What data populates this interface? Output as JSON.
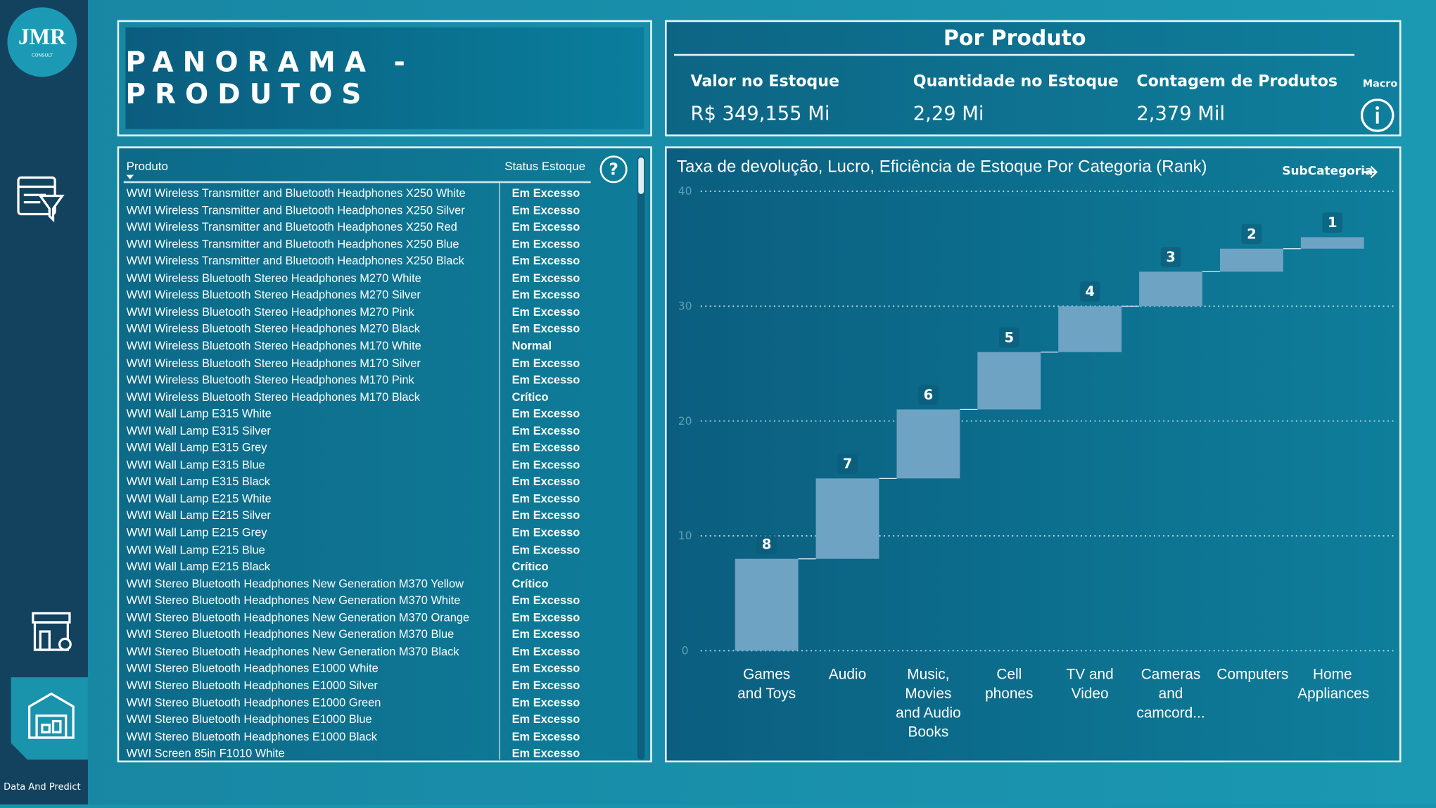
{
  "sidebar": {
    "logo": "JMR",
    "logo_sub": "CONSULT",
    "footer": "Data And Predict"
  },
  "header": {
    "title": "PANORAMA - PRODUTOS"
  },
  "kpis": {
    "title": "Por Produto",
    "items": [
      {
        "label": "Valor no Estoque",
        "value": "R$ 349,155 Mi"
      },
      {
        "label": "Quantidade no Estoque",
        "value": "2,29 Mi"
      },
      {
        "label": "Contagem de Produtos",
        "value": "2,379 Mil"
      }
    ],
    "macro": "Macro"
  },
  "table": {
    "columns": [
      "Produto",
      "Status Estoque"
    ],
    "rows": [
      [
        "WWI Wireless Transmitter and Bluetooth Headphones X250 White",
        "Em Excesso"
      ],
      [
        "WWI Wireless Transmitter and Bluetooth Headphones X250 Silver",
        "Em Excesso"
      ],
      [
        "WWI Wireless Transmitter and Bluetooth Headphones X250 Red",
        "Em Excesso"
      ],
      [
        "WWI Wireless Transmitter and Bluetooth Headphones X250 Blue",
        "Em Excesso"
      ],
      [
        "WWI Wireless Transmitter and Bluetooth Headphones X250 Black",
        "Em Excesso"
      ],
      [
        "WWI Wireless Bluetooth Stereo Headphones M270 White",
        "Em Excesso"
      ],
      [
        "WWI Wireless Bluetooth Stereo Headphones M270 Silver",
        "Em Excesso"
      ],
      [
        "WWI Wireless Bluetooth Stereo Headphones M270 Pink",
        "Em Excesso"
      ],
      [
        "WWI Wireless Bluetooth Stereo Headphones M270 Black",
        "Em Excesso"
      ],
      [
        "WWI Wireless Bluetooth Stereo Headphones M170 White",
        "Normal"
      ],
      [
        "WWI Wireless Bluetooth Stereo Headphones M170 Silver",
        "Em Excesso"
      ],
      [
        "WWI Wireless Bluetooth Stereo Headphones M170 Pink",
        "Em Excesso"
      ],
      [
        "WWI Wireless Bluetooth Stereo Headphones M170 Black",
        "Crítico"
      ],
      [
        "WWI Wall Lamp E315 White",
        "Em Excesso"
      ],
      [
        "WWI Wall Lamp E315 Silver",
        "Em Excesso"
      ],
      [
        "WWI Wall Lamp E315 Grey",
        "Em Excesso"
      ],
      [
        "WWI Wall Lamp E315 Blue",
        "Em Excesso"
      ],
      [
        "WWI Wall Lamp E315 Black",
        "Em Excesso"
      ],
      [
        "WWI Wall Lamp E215 White",
        "Em Excesso"
      ],
      [
        "WWI Wall Lamp E215 Silver",
        "Em Excesso"
      ],
      [
        "WWI Wall Lamp E215 Grey",
        "Em Excesso"
      ],
      [
        "WWI Wall Lamp E215 Blue",
        "Em Excesso"
      ],
      [
        "WWI Wall Lamp E215 Black",
        "Crítico"
      ],
      [
        "WWI Stereo Bluetooth Headphones New Generation M370 Yellow",
        "Crítico"
      ],
      [
        "WWI Stereo Bluetooth Headphones New Generation M370 White",
        "Em Excesso"
      ],
      [
        "WWI Stereo Bluetooth Headphones New Generation M370 Orange",
        "Em Excesso"
      ],
      [
        "WWI Stereo Bluetooth Headphones New Generation M370 Blue",
        "Em Excesso"
      ],
      [
        "WWI Stereo Bluetooth Headphones New Generation M370 Black",
        "Em Excesso"
      ],
      [
        "WWI Stereo Bluetooth Headphones E1000 White",
        "Em Excesso"
      ],
      [
        "WWI Stereo Bluetooth Headphones E1000 Silver",
        "Em Excesso"
      ],
      [
        "WWI Stereo Bluetooth Headphones E1000 Green",
        "Em Excesso"
      ],
      [
        "WWI Stereo Bluetooth Headphones E1000 Blue",
        "Em Excesso"
      ],
      [
        "WWI Stereo Bluetooth Headphones E1000 Black",
        "Em Excesso"
      ],
      [
        "WWI Screen 85in F1010 White",
        "Em Excesso"
      ]
    ]
  },
  "chart_data": {
    "type": "waterfall",
    "title": "Taxa de devolução, Lucro, Eficiência de Estoque Por Categoria (Rank)",
    "drill_label": "SubCategoria",
    "categories": [
      "Games and Toys",
      "Audio",
      "Music, Movies and Audio Books",
      "Cell phones",
      "TV and Video",
      "Cameras and camcord...",
      "Computers",
      "Home Appliances"
    ],
    "values": [
      8,
      7,
      6,
      5,
      4,
      3,
      2,
      1
    ],
    "color": "#6fa3c4",
    "ylim": [
      0,
      40
    ],
    "yticks": [
      0,
      10,
      20,
      30,
      40
    ],
    "grid": true
  }
}
